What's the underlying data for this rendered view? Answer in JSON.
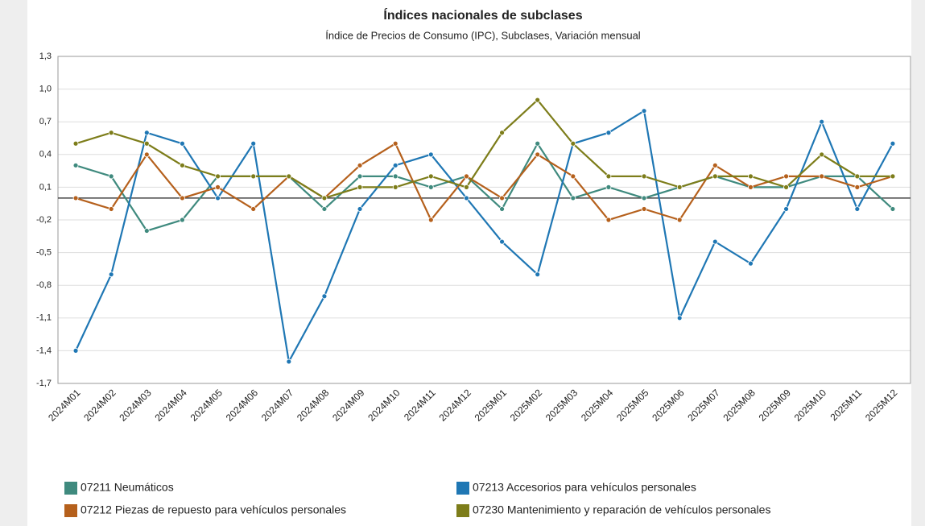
{
  "chart_data": {
    "type": "line",
    "title": "Índices nacionales de subclases",
    "subtitle": "Índice de Precios de Consumo (IPC), Subclases, Variación mensual",
    "categories": [
      "2024M01",
      "2024M02",
      "2024M03",
      "2024M04",
      "2024M05",
      "2024M06",
      "2024M07",
      "2024M08",
      "2024M09",
      "2024M10",
      "2024M11",
      "2024M12",
      "2025M01",
      "2025M02",
      "2025M03",
      "2025M04",
      "2025M05",
      "2025M06",
      "2025M07",
      "2025M08",
      "2025M09",
      "2025M10",
      "2025M11",
      "2025M12"
    ],
    "series": [
      {
        "name": "07211 Neumáticos",
        "color": "#3f8a7e",
        "values": [
          0.3,
          0.2,
          -0.3,
          -0.2,
          0.2,
          0.2,
          0.2,
          -0.1,
          0.2,
          0.2,
          0.1,
          0.2,
          -0.1,
          0.5,
          0.0,
          0.1,
          0.0,
          0.1,
          0.2,
          0.1,
          0.1,
          0.2,
          0.2,
          -0.1
        ]
      },
      {
        "name": "07213 Accesorios para vehículos personales",
        "color": "#1f77b4",
        "values": [
          -1.4,
          -0.7,
          0.6,
          0.5,
          0.0,
          0.5,
          -1.5,
          -0.9,
          -0.1,
          0.3,
          0.4,
          0.0,
          -0.4,
          -0.7,
          0.5,
          0.6,
          0.8,
          -1.1,
          -0.4,
          -0.6,
          -0.1,
          0.7,
          -0.1,
          0.5
        ]
      },
      {
        "name": "07212 Piezas de repuesto para vehículos personales",
        "color": "#b5601c",
        "values": [
          0.0,
          -0.1,
          0.4,
          0.0,
          0.1,
          -0.1,
          0.2,
          0.0,
          0.3,
          0.5,
          -0.2,
          0.2,
          0.0,
          0.4,
          0.2,
          -0.2,
          -0.1,
          -0.2,
          0.3,
          0.1,
          0.2,
          0.2,
          0.1,
          0.2
        ]
      },
      {
        "name": "07230 Mantenimiento y reparación de vehículos personales",
        "color": "#7d7d1a",
        "values": [
          0.5,
          0.6,
          0.5,
          0.3,
          0.2,
          0.2,
          0.2,
          0.0,
          0.1,
          0.1,
          0.2,
          0.1,
          0.6,
          0.9,
          0.5,
          0.2,
          0.2,
          0.1,
          0.2,
          0.2,
          0.1,
          0.4,
          0.2,
          0.2
        ]
      }
    ],
    "ylim": [
      -1.7,
      1.3
    ],
    "yticks": [
      {
        "value": 1.3,
        "label": "1,3"
      },
      {
        "value": 1.0,
        "label": "1,0"
      },
      {
        "value": 0.7,
        "label": "0,7"
      },
      {
        "value": 0.4,
        "label": "0,4"
      },
      {
        "value": 0.1,
        "label": "0,1"
      },
      {
        "value": -0.2,
        "label": "-0,2"
      },
      {
        "value": -0.5,
        "label": "-0,5"
      },
      {
        "value": -0.8,
        "label": "-0,8"
      },
      {
        "value": -1.1,
        "label": "-1,1"
      },
      {
        "value": -1.4,
        "label": "-1,4"
      },
      {
        "value": -1.7,
        "label": "-1,7"
      }
    ],
    "grid": true
  }
}
